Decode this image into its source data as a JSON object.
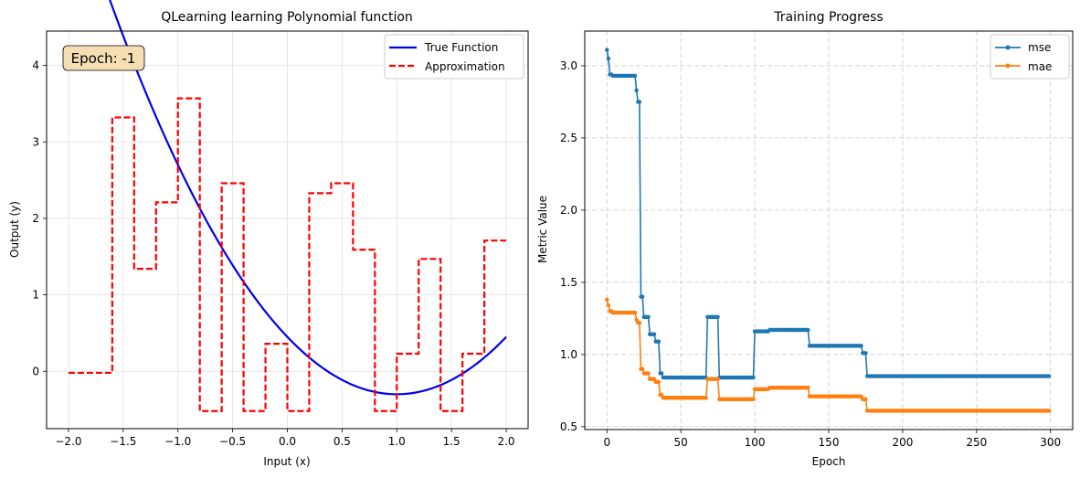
{
  "figure": {
    "background": "#ffffff"
  },
  "chart_data": [
    {
      "type": "line",
      "title": "QLearning learning Polynomial function",
      "xlabel": "Input (x)",
      "ylabel": "Output (y)",
      "xlim": [
        -2.2,
        2.2
      ],
      "ylim": [
        -0.75,
        4.45
      ],
      "xticks": [
        -2.0,
        -1.5,
        -1.0,
        -0.5,
        0.0,
        0.5,
        1.0,
        1.5,
        2.0
      ],
      "xtick_labels": [
        "−2.0",
        "−1.5",
        "−1.0",
        "−0.5",
        "0.0",
        "0.5",
        "1.0",
        "1.5",
        "2.0"
      ],
      "yticks": [
        0,
        1,
        2,
        3,
        4
      ],
      "ytick_labels": [
        "0",
        "1",
        "2",
        "3",
        "4"
      ],
      "grid": true,
      "legend_position": "top-right",
      "annotation": {
        "text": "Epoch: -1",
        "position": "top-left",
        "box_color": "#f5deb3"
      },
      "series": [
        {
          "name": "True Function",
          "style": "solid",
          "color": "#0000ee",
          "polynomial": {
            "a": 0.75,
            "h": 1.0,
            "k": -0.3
          },
          "x_range": [
            -2.0,
            2.0
          ]
        },
        {
          "name": "Approximation",
          "style": "dashed-step",
          "color": "#ff0000",
          "steps": [
            {
              "x0": -2.0,
              "x1": -1.6,
              "y": -0.02
            },
            {
              "x0": -1.6,
              "x1": -1.4,
              "y": 3.32
            },
            {
              "x0": -1.4,
              "x1": -1.2,
              "y": 1.34
            },
            {
              "x0": -1.2,
              "x1": -1.0,
              "y": 2.21
            },
            {
              "x0": -1.0,
              "x1": -0.8,
              "y": 3.57
            },
            {
              "x0": -0.8,
              "x1": -0.6,
              "y": -0.52
            },
            {
              "x0": -0.6,
              "x1": -0.4,
              "y": 2.46
            },
            {
              "x0": -0.4,
              "x1": -0.2,
              "y": -0.52
            },
            {
              "x0": -0.2,
              "x1": 0.0,
              "y": 0.36
            },
            {
              "x0": 0.0,
              "x1": 0.2,
              "y": -0.52
            },
            {
              "x0": 0.2,
              "x1": 0.4,
              "y": 2.33
            },
            {
              "x0": 0.4,
              "x1": 0.6,
              "y": 2.46
            },
            {
              "x0": 0.6,
              "x1": 0.8,
              "y": 1.59
            },
            {
              "x0": 0.8,
              "x1": 1.0,
              "y": -0.52
            },
            {
              "x0": 1.0,
              "x1": 1.2,
              "y": 0.23
            },
            {
              "x0": 1.2,
              "x1": 1.4,
              "y": 1.47
            },
            {
              "x0": 1.4,
              "x1": 1.6,
              "y": -0.52
            },
            {
              "x0": 1.6,
              "x1": 1.8,
              "y": 0.23
            },
            {
              "x0": 1.8,
              "x1": 2.0,
              "y": 1.71
            }
          ]
        }
      ]
    },
    {
      "type": "line",
      "title": "Training Progress",
      "xlabel": "Epoch",
      "ylabel": "Metric Value",
      "xlim": [
        -15,
        315
      ],
      "ylim": [
        0.48,
        3.24
      ],
      "xticks": [
        0,
        50,
        100,
        150,
        200,
        250,
        300
      ],
      "xtick_labels": [
        "0",
        "50",
        "100",
        "150",
        "200",
        "250",
        "300"
      ],
      "yticks": [
        0.5,
        1.0,
        1.5,
        2.0,
        2.5,
        3.0
      ],
      "ytick_labels": [
        "0.5",
        "1.0",
        "1.5",
        "2.0",
        "2.5",
        "3.0"
      ],
      "grid": true,
      "grid_style": "dashed",
      "legend_position": "top-right",
      "epochs": 300,
      "series": [
        {
          "name": "mse",
          "color": "#1f77b4",
          "marker": "circle",
          "values_segments": [
            {
              "from": 0,
              "to": 0,
              "y": 3.11
            },
            {
              "from": 1,
              "to": 1,
              "y": 3.05
            },
            {
              "from": 2,
              "to": 3,
              "y": 2.94
            },
            {
              "from": 4,
              "to": 19,
              "y": 2.93
            },
            {
              "from": 20,
              "to": 20,
              "y": 2.83
            },
            {
              "from": 21,
              "to": 22,
              "y": 2.75
            },
            {
              "from": 23,
              "to": 24,
              "y": 1.4
            },
            {
              "from": 25,
              "to": 28,
              "y": 1.26
            },
            {
              "from": 29,
              "to": 32,
              "y": 1.14
            },
            {
              "from": 33,
              "to": 35,
              "y": 1.09
            },
            {
              "from": 36,
              "to": 37,
              "y": 0.87
            },
            {
              "from": 38,
              "to": 67,
              "y": 0.84
            },
            {
              "from": 68,
              "to": 75,
              "y": 1.26
            },
            {
              "from": 76,
              "to": 99,
              "y": 0.84
            },
            {
              "from": 100,
              "to": 109,
              "y": 1.16
            },
            {
              "from": 110,
              "to": 136,
              "y": 1.17
            },
            {
              "from": 137,
              "to": 172,
              "y": 1.06
            },
            {
              "from": 173,
              "to": 175,
              "y": 1.01
            },
            {
              "from": 176,
              "to": 299,
              "y": 0.85
            }
          ]
        },
        {
          "name": "mae",
          "color": "#ff7f0e",
          "marker": "circle",
          "values_segments": [
            {
              "from": 0,
              "to": 0,
              "y": 1.38
            },
            {
              "from": 1,
              "to": 1,
              "y": 1.34
            },
            {
              "from": 2,
              "to": 3,
              "y": 1.3
            },
            {
              "from": 4,
              "to": 19,
              "y": 1.29
            },
            {
              "from": 20,
              "to": 20,
              "y": 1.24
            },
            {
              "from": 21,
              "to": 22,
              "y": 1.22
            },
            {
              "from": 23,
              "to": 24,
              "y": 0.9
            },
            {
              "from": 25,
              "to": 28,
              "y": 0.87
            },
            {
              "from": 29,
              "to": 32,
              "y": 0.83
            },
            {
              "from": 33,
              "to": 35,
              "y": 0.81
            },
            {
              "from": 36,
              "to": 37,
              "y": 0.72
            },
            {
              "from": 38,
              "to": 67,
              "y": 0.7
            },
            {
              "from": 68,
              "to": 75,
              "y": 0.83
            },
            {
              "from": 76,
              "to": 99,
              "y": 0.69
            },
            {
              "from": 100,
              "to": 109,
              "y": 0.76
            },
            {
              "from": 110,
              "to": 136,
              "y": 0.77
            },
            {
              "from": 137,
              "to": 172,
              "y": 0.71
            },
            {
              "from": 173,
              "to": 175,
              "y": 0.69
            },
            {
              "from": 176,
              "to": 299,
              "y": 0.61
            }
          ]
        }
      ]
    }
  ]
}
